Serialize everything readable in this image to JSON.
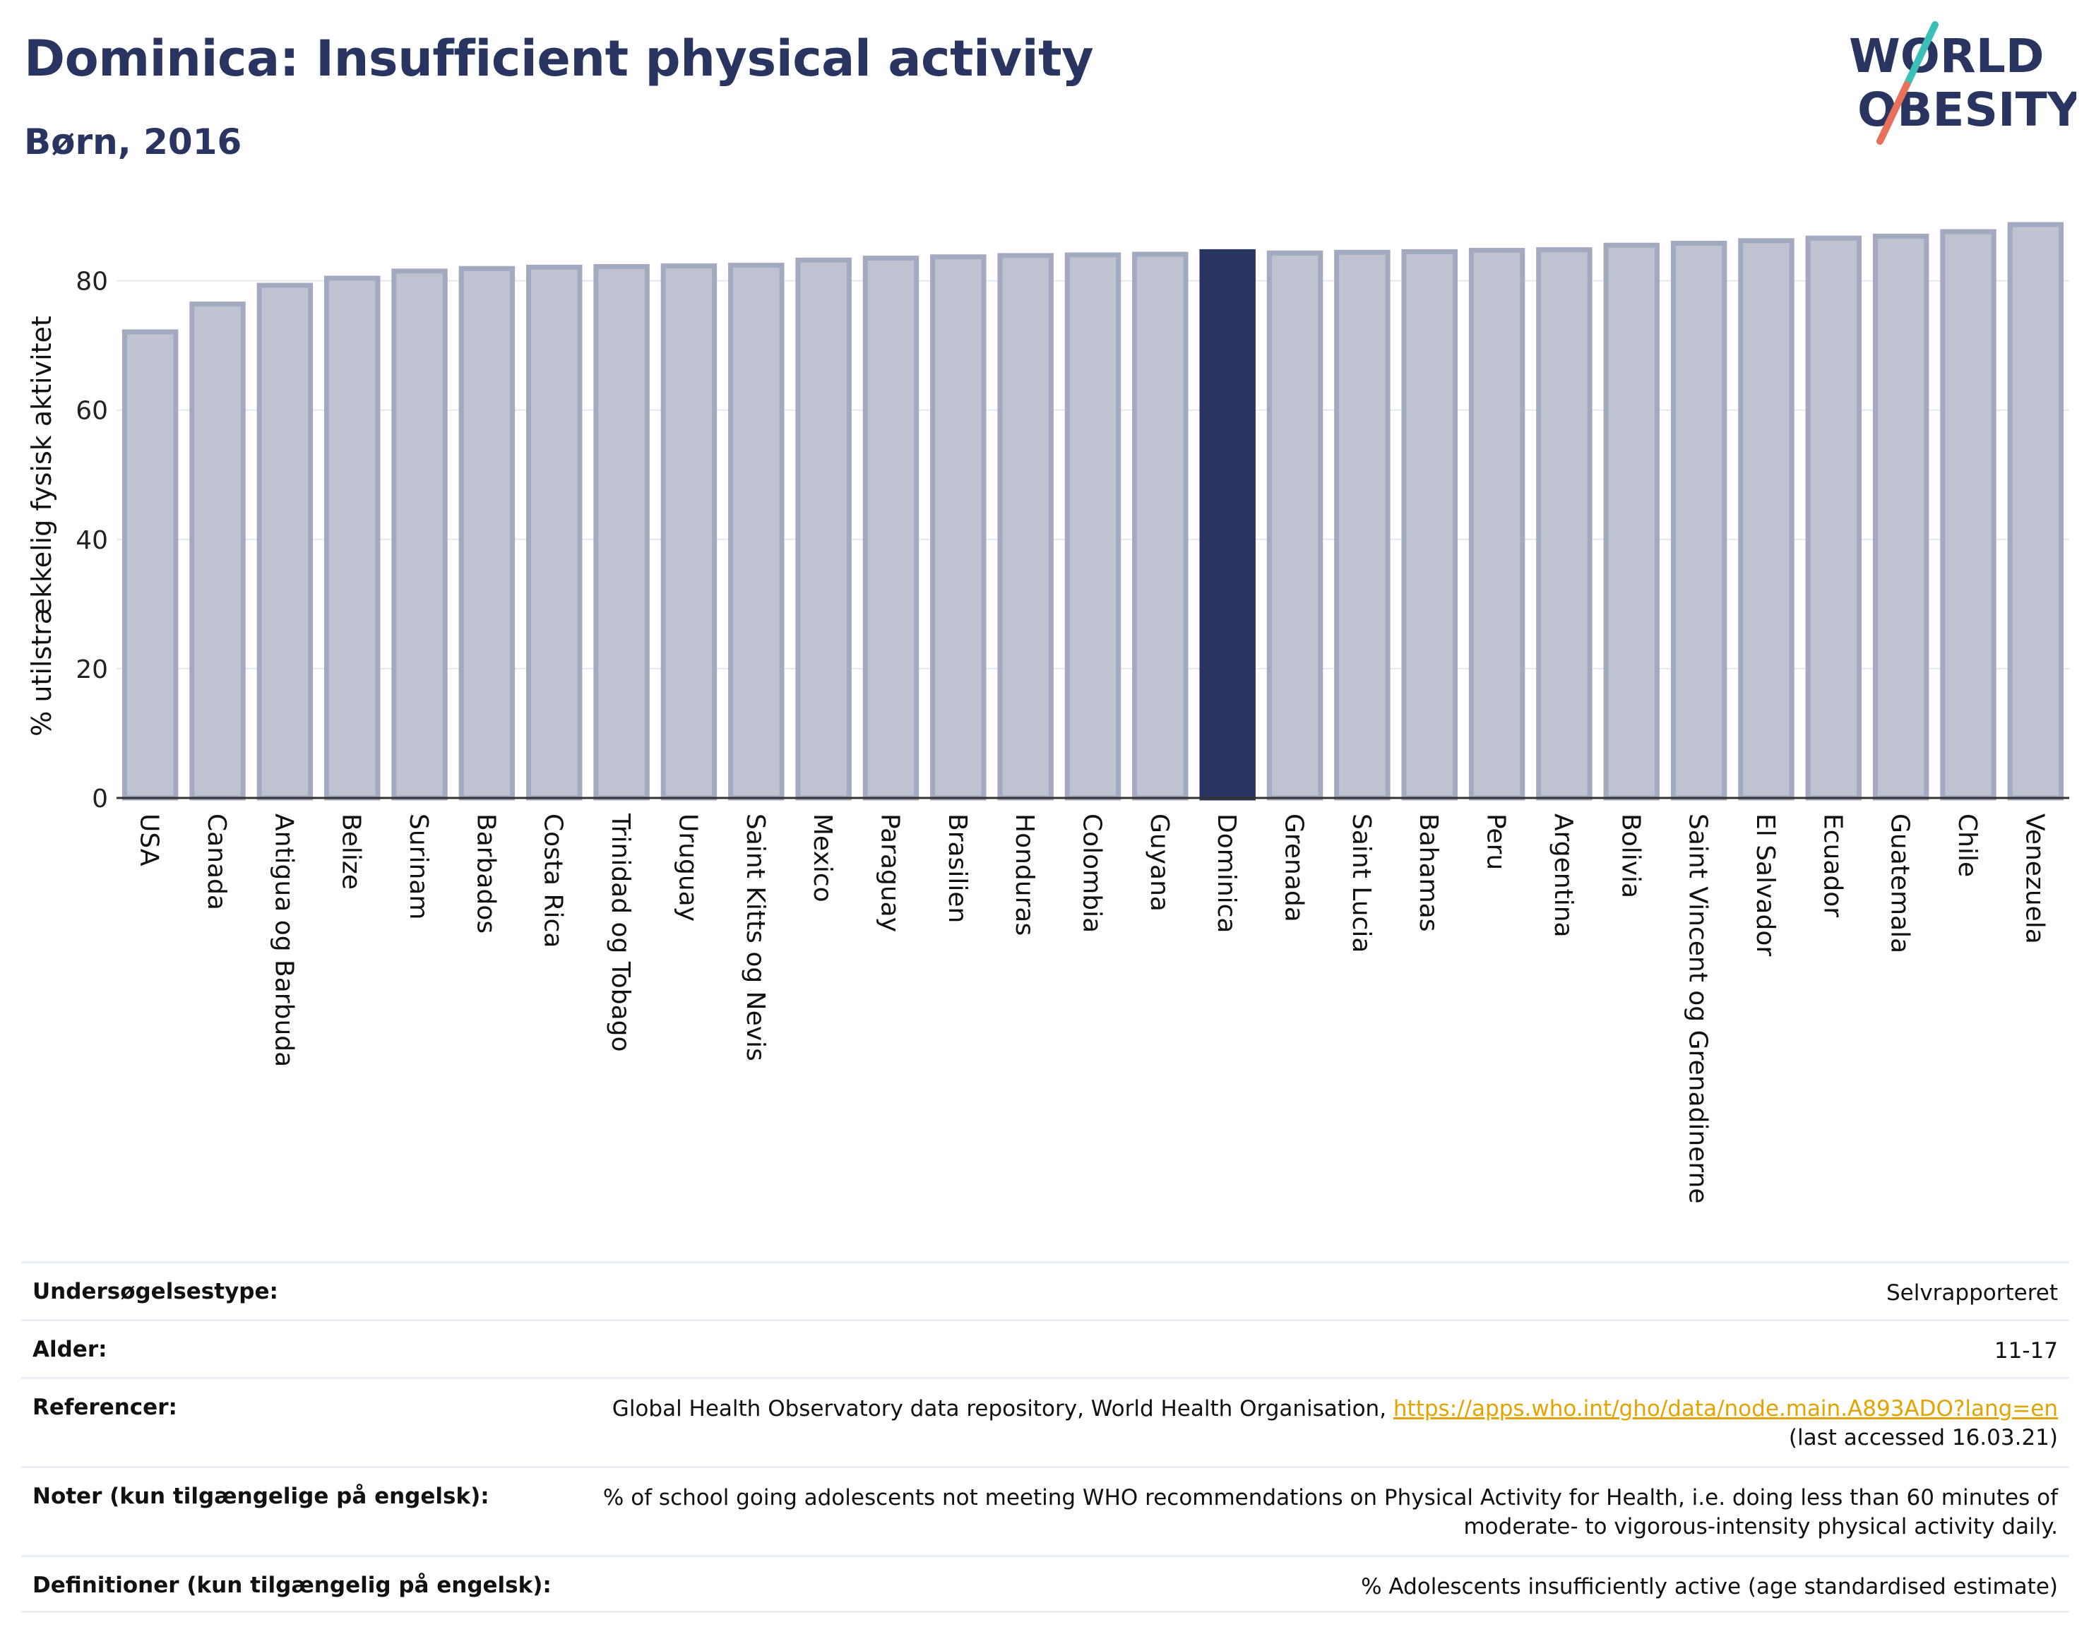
{
  "header": {
    "title": "Dominica: Insufficient physical activity",
    "subtitle": "Børn, 2016"
  },
  "logo": {
    "line1": "WORLD",
    "line2": "OBESITY",
    "colors": {
      "text": "#2a3461",
      "slash_teal": "#3bbfb6",
      "slash_coral": "#e8715c"
    }
  },
  "colors": {
    "highlight": "#2a3461",
    "bar_fill": "#bfc3d1",
    "bar_stroke": "#a3a9bf",
    "title": "#2a3461",
    "link": "#e3a400"
  },
  "chart_data": {
    "type": "bar",
    "ylabel": "% utilstrækkelig fysisk aktivitet",
    "ylim": [
      0,
      90
    ],
    "yticks": [
      0,
      20,
      40,
      60,
      80
    ],
    "grid": true,
    "highlight": "Dominica",
    "categories": [
      "USA",
      "Canada",
      "Antigua og Barbuda",
      "Belize",
      "Surinam",
      "Barbados",
      "Costa Rica",
      "Trinidad og Tobago",
      "Uruguay",
      "Saint Kitts og Nevis",
      "Mexico",
      "Paraguay",
      "Brasilien",
      "Honduras",
      "Colombia",
      "Guyana",
      "Dominica",
      "Grenada",
      "Saint Lucia",
      "Bahamas",
      "Peru",
      "Argentina",
      "Bolivia",
      "Saint Vincent og Grenadinerne",
      "El Salvador",
      "Ecuador",
      "Guatemala",
      "Chile",
      "Venezuela"
    ],
    "values": [
      72.1,
      76.4,
      79.3,
      80.4,
      81.5,
      81.9,
      82.1,
      82.2,
      82.3,
      82.4,
      83.2,
      83.5,
      83.7,
      83.9,
      84.0,
      84.1,
      84.5,
      84.3,
      84.4,
      84.5,
      84.7,
      84.8,
      85.5,
      85.8,
      86.2,
      86.6,
      86.9,
      87.6,
      88.7
    ]
  },
  "info_table": [
    {
      "label": "Undersøgelsestype:",
      "value": "Selvrapporteret"
    },
    {
      "label": "Alder:",
      "value": "11-17"
    },
    {
      "label": "Referencer:",
      "value_prefix": "Global Health Observatory data repository, World Health Organisation, ",
      "link": "https://apps.who.int/gho/data/node.main.A893ADO?lang=en",
      "value_suffix": "(last accessed 16.03.21)"
    },
    {
      "label": "Noter (kun tilgængelige på engelsk):",
      "value": "% of school going adolescents not meeting WHO recommendations on Physical Activity for Health, i.e. doing less than 60 minutes of moderate- to vigorous-intensity physical activity daily."
    },
    {
      "label": "Definitioner (kun tilgængelig på engelsk):",
      "value": "% Adolescents insufficiently active (age standardised estimate)"
    }
  ]
}
